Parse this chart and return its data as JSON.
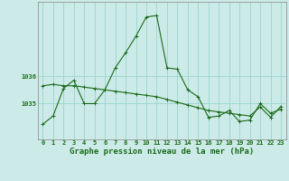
{
  "title": "Graphe pression niveau de la mer (hPa)",
  "background_color": "#cceae7",
  "grid_color": "#99d5d0",
  "line_color": "#1a6b1a",
  "x_labels": [
    "0",
    "1",
    "2",
    "3",
    "4",
    "5",
    "6",
    "7",
    "8",
    "9",
    "10",
    "11",
    "12",
    "13",
    "14",
    "15",
    "16",
    "17",
    "18",
    "19",
    "20",
    "21",
    "22",
    "23"
  ],
  "series1": [
    1034.25,
    1034.55,
    1035.55,
    1035.85,
    1035.0,
    1035.0,
    1035.5,
    1036.3,
    1036.85,
    1037.45,
    1038.15,
    1038.2,
    1036.3,
    1036.25,
    1035.5,
    1035.25,
    1034.5,
    1034.55,
    1034.75,
    1034.35,
    1034.4,
    1035.0,
    1034.65,
    1034.8
  ],
  "series2": [
    1035.65,
    1035.7,
    1035.65,
    1035.65,
    1035.6,
    1035.55,
    1035.5,
    1035.45,
    1035.4,
    1035.35,
    1035.3,
    1035.25,
    1035.15,
    1035.05,
    1034.95,
    1034.85,
    1034.75,
    1034.7,
    1034.65,
    1034.6,
    1034.55,
    1034.88,
    1034.5,
    1034.9
  ],
  "ylim_min": 1033.7,
  "ylim_max": 1038.7,
  "yticks": [
    1035,
    1036
  ],
  "title_fontsize": 6.5,
  "tick_fontsize": 5.0
}
